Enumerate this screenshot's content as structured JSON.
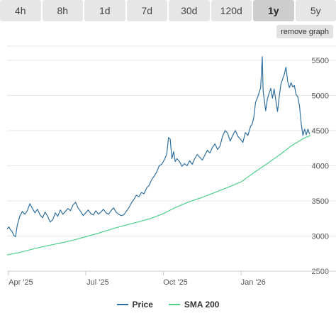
{
  "tabs": [
    {
      "label": "4h",
      "active": false
    },
    {
      "label": "8h",
      "active": false
    },
    {
      "label": "1d",
      "active": false
    },
    {
      "label": "7d",
      "active": false
    },
    {
      "label": "30d",
      "active": false
    },
    {
      "label": "120d",
      "active": false
    },
    {
      "label": "1y",
      "active": true
    },
    {
      "label": "5y",
      "active": false
    }
  ],
  "remove_graph_label": "remove graph",
  "legend": [
    {
      "label": "Price",
      "color": "#2f6f9f"
    },
    {
      "label": "SMA 200",
      "color": "#4cd08a"
    }
  ],
  "chart_data": {
    "type": "line",
    "title": "",
    "xlabel": "",
    "ylabel": "",
    "ylim": [
      2500,
      5700
    ],
    "yticks": [
      2500,
      3000,
      3500,
      4000,
      4500,
      5000,
      5500
    ],
    "xlim": [
      "2025-03-30",
      "2026-03-24"
    ],
    "xticks": [
      {
        "date": "2025-04-01",
        "label": "Apr '25"
      },
      {
        "date": "2025-07-01",
        "label": "Jul '25"
      },
      {
        "date": "2025-10-01",
        "label": "Oct '25"
      },
      {
        "date": "2026-01-01",
        "label": "Jan '26"
      }
    ],
    "grid": true,
    "legend_position": "bottom",
    "series": [
      {
        "name": "Price",
        "color": "#2f6f9f",
        "points": [
          [
            "2025-03-30",
            3100
          ],
          [
            "2025-04-01",
            3130
          ],
          [
            "2025-04-03",
            3090
          ],
          [
            "2025-04-05",
            3060
          ],
          [
            "2025-04-07",
            3010
          ],
          [
            "2025-04-09",
            2990
          ],
          [
            "2025-04-11",
            3150
          ],
          [
            "2025-04-14",
            3280
          ],
          [
            "2025-04-17",
            3350
          ],
          [
            "2025-04-20",
            3310
          ],
          [
            "2025-04-23",
            3360
          ],
          [
            "2025-04-26",
            3460
          ],
          [
            "2025-04-29",
            3390
          ],
          [
            "2025-05-02",
            3330
          ],
          [
            "2025-05-05",
            3380
          ],
          [
            "2025-05-08",
            3300
          ],
          [
            "2025-05-11",
            3260
          ],
          [
            "2025-05-14",
            3340
          ],
          [
            "2025-05-17",
            3280
          ],
          [
            "2025-05-20",
            3200
          ],
          [
            "2025-05-23",
            3230
          ],
          [
            "2025-05-26",
            3330
          ],
          [
            "2025-05-29",
            3280
          ],
          [
            "2025-06-01",
            3370
          ],
          [
            "2025-06-04",
            3310
          ],
          [
            "2025-06-07",
            3350
          ],
          [
            "2025-06-10",
            3390
          ],
          [
            "2025-06-13",
            3360
          ],
          [
            "2025-06-16",
            3440
          ],
          [
            "2025-06-19",
            3480
          ],
          [
            "2025-06-22",
            3400
          ],
          [
            "2025-06-25",
            3350
          ],
          [
            "2025-06-28",
            3290
          ],
          [
            "2025-07-01",
            3330
          ],
          [
            "2025-07-04",
            3370
          ],
          [
            "2025-07-07",
            3320
          ],
          [
            "2025-07-10",
            3300
          ],
          [
            "2025-07-13",
            3360
          ],
          [
            "2025-07-16",
            3310
          ],
          [
            "2025-07-19",
            3340
          ],
          [
            "2025-07-22",
            3380
          ],
          [
            "2025-07-25",
            3330
          ],
          [
            "2025-07-28",
            3310
          ],
          [
            "2025-07-31",
            3360
          ],
          [
            "2025-08-03",
            3400
          ],
          [
            "2025-08-06",
            3340
          ],
          [
            "2025-08-09",
            3310
          ],
          [
            "2025-08-12",
            3290
          ],
          [
            "2025-08-15",
            3300
          ],
          [
            "2025-08-18",
            3350
          ],
          [
            "2025-08-21",
            3400
          ],
          [
            "2025-08-24",
            3470
          ],
          [
            "2025-08-27",
            3520
          ],
          [
            "2025-08-30",
            3580
          ],
          [
            "2025-09-02",
            3560
          ],
          [
            "2025-09-05",
            3620
          ],
          [
            "2025-09-08",
            3600
          ],
          [
            "2025-09-11",
            3680
          ],
          [
            "2025-09-14",
            3720
          ],
          [
            "2025-09-17",
            3800
          ],
          [
            "2025-09-20",
            3850
          ],
          [
            "2025-09-23",
            3910
          ],
          [
            "2025-09-26",
            4000
          ],
          [
            "2025-09-29",
            4020
          ],
          [
            "2025-10-02",
            4080
          ],
          [
            "2025-10-05",
            4170
          ],
          [
            "2025-10-07",
            4400
          ],
          [
            "2025-10-09",
            4380
          ],
          [
            "2025-10-11",
            4100
          ],
          [
            "2025-10-13",
            4200
          ],
          [
            "2025-10-15",
            4060
          ],
          [
            "2025-10-17",
            4100
          ],
          [
            "2025-10-20",
            4060
          ],
          [
            "2025-10-23",
            3990
          ],
          [
            "2025-10-26",
            4030
          ],
          [
            "2025-10-29",
            4000
          ],
          [
            "2025-11-01",
            4070
          ],
          [
            "2025-11-04",
            4020
          ],
          [
            "2025-11-07",
            4100
          ],
          [
            "2025-11-10",
            4160
          ],
          [
            "2025-11-13",
            4120
          ],
          [
            "2025-11-16",
            4080
          ],
          [
            "2025-11-19",
            4150
          ],
          [
            "2025-11-22",
            4220
          ],
          [
            "2025-11-25",
            4180
          ],
          [
            "2025-11-28",
            4260
          ],
          [
            "2025-12-01",
            4310
          ],
          [
            "2025-12-04",
            4230
          ],
          [
            "2025-12-07",
            4280
          ],
          [
            "2025-12-10",
            4420
          ],
          [
            "2025-12-13",
            4500
          ],
          [
            "2025-12-16",
            4460
          ],
          [
            "2025-12-19",
            4350
          ],
          [
            "2025-12-22",
            4430
          ],
          [
            "2025-12-25",
            4500
          ],
          [
            "2025-12-28",
            4420
          ],
          [
            "2025-12-31",
            4380
          ],
          [
            "2026-01-03",
            4330
          ],
          [
            "2026-01-06",
            4470
          ],
          [
            "2026-01-09",
            4430
          ],
          [
            "2026-01-12",
            4560
          ],
          [
            "2026-01-14",
            4590
          ],
          [
            "2026-01-16",
            4690
          ],
          [
            "2026-01-18",
            4900
          ],
          [
            "2026-01-20",
            4960
          ],
          [
            "2026-01-22",
            5030
          ],
          [
            "2026-01-24",
            5110
          ],
          [
            "2026-01-26",
            5550
          ],
          [
            "2026-01-27",
            5060
          ],
          [
            "2026-01-28",
            4970
          ],
          [
            "2026-01-30",
            4780
          ],
          [
            "2026-02-01",
            4950
          ],
          [
            "2026-02-03",
            5030
          ],
          [
            "2026-02-05",
            5100
          ],
          [
            "2026-02-07",
            4960
          ],
          [
            "2026-02-09",
            5090
          ],
          [
            "2026-02-11",
            4930
          ],
          [
            "2026-02-13",
            4770
          ],
          [
            "2026-02-15",
            4980
          ],
          [
            "2026-02-17",
            5160
          ],
          [
            "2026-02-19",
            5230
          ],
          [
            "2026-02-21",
            5300
          ],
          [
            "2026-02-23",
            5400
          ],
          [
            "2026-02-25",
            5200
          ],
          [
            "2026-02-27",
            5110
          ],
          [
            "2026-03-01",
            5180
          ],
          [
            "2026-03-03",
            5120
          ],
          [
            "2026-03-05",
            5140
          ],
          [
            "2026-03-07",
            5010
          ],
          [
            "2026-03-09",
            4980
          ],
          [
            "2026-03-11",
            4850
          ],
          [
            "2026-03-13",
            4600
          ],
          [
            "2026-03-15",
            4430
          ],
          [
            "2026-03-17",
            4520
          ],
          [
            "2026-03-19",
            4440
          ],
          [
            "2026-03-21",
            4520
          ],
          [
            "2026-03-23",
            4450
          ]
        ]
      },
      {
        "name": "SMA 200",
        "color": "#4cd08a",
        "points": [
          [
            "2025-03-30",
            2730
          ],
          [
            "2025-04-15",
            2770
          ],
          [
            "2025-05-01",
            2820
          ],
          [
            "2025-05-16",
            2860
          ],
          [
            "2025-06-01",
            2900
          ],
          [
            "2025-06-16",
            2940
          ],
          [
            "2025-07-01",
            2990
          ],
          [
            "2025-07-16",
            3040
          ],
          [
            "2025-08-01",
            3100
          ],
          [
            "2025-08-16",
            3150
          ],
          [
            "2025-09-01",
            3200
          ],
          [
            "2025-09-16",
            3250
          ],
          [
            "2025-10-01",
            3320
          ],
          [
            "2025-10-16",
            3410
          ],
          [
            "2025-11-01",
            3490
          ],
          [
            "2025-11-16",
            3550
          ],
          [
            "2025-12-01",
            3620
          ],
          [
            "2025-12-16",
            3690
          ],
          [
            "2026-01-01",
            3770
          ],
          [
            "2026-01-16",
            3900
          ],
          [
            "2026-02-01",
            4030
          ],
          [
            "2026-02-16",
            4160
          ],
          [
            "2026-03-01",
            4280
          ],
          [
            "2026-03-16",
            4390
          ],
          [
            "2026-03-24",
            4430
          ]
        ]
      }
    ]
  }
}
